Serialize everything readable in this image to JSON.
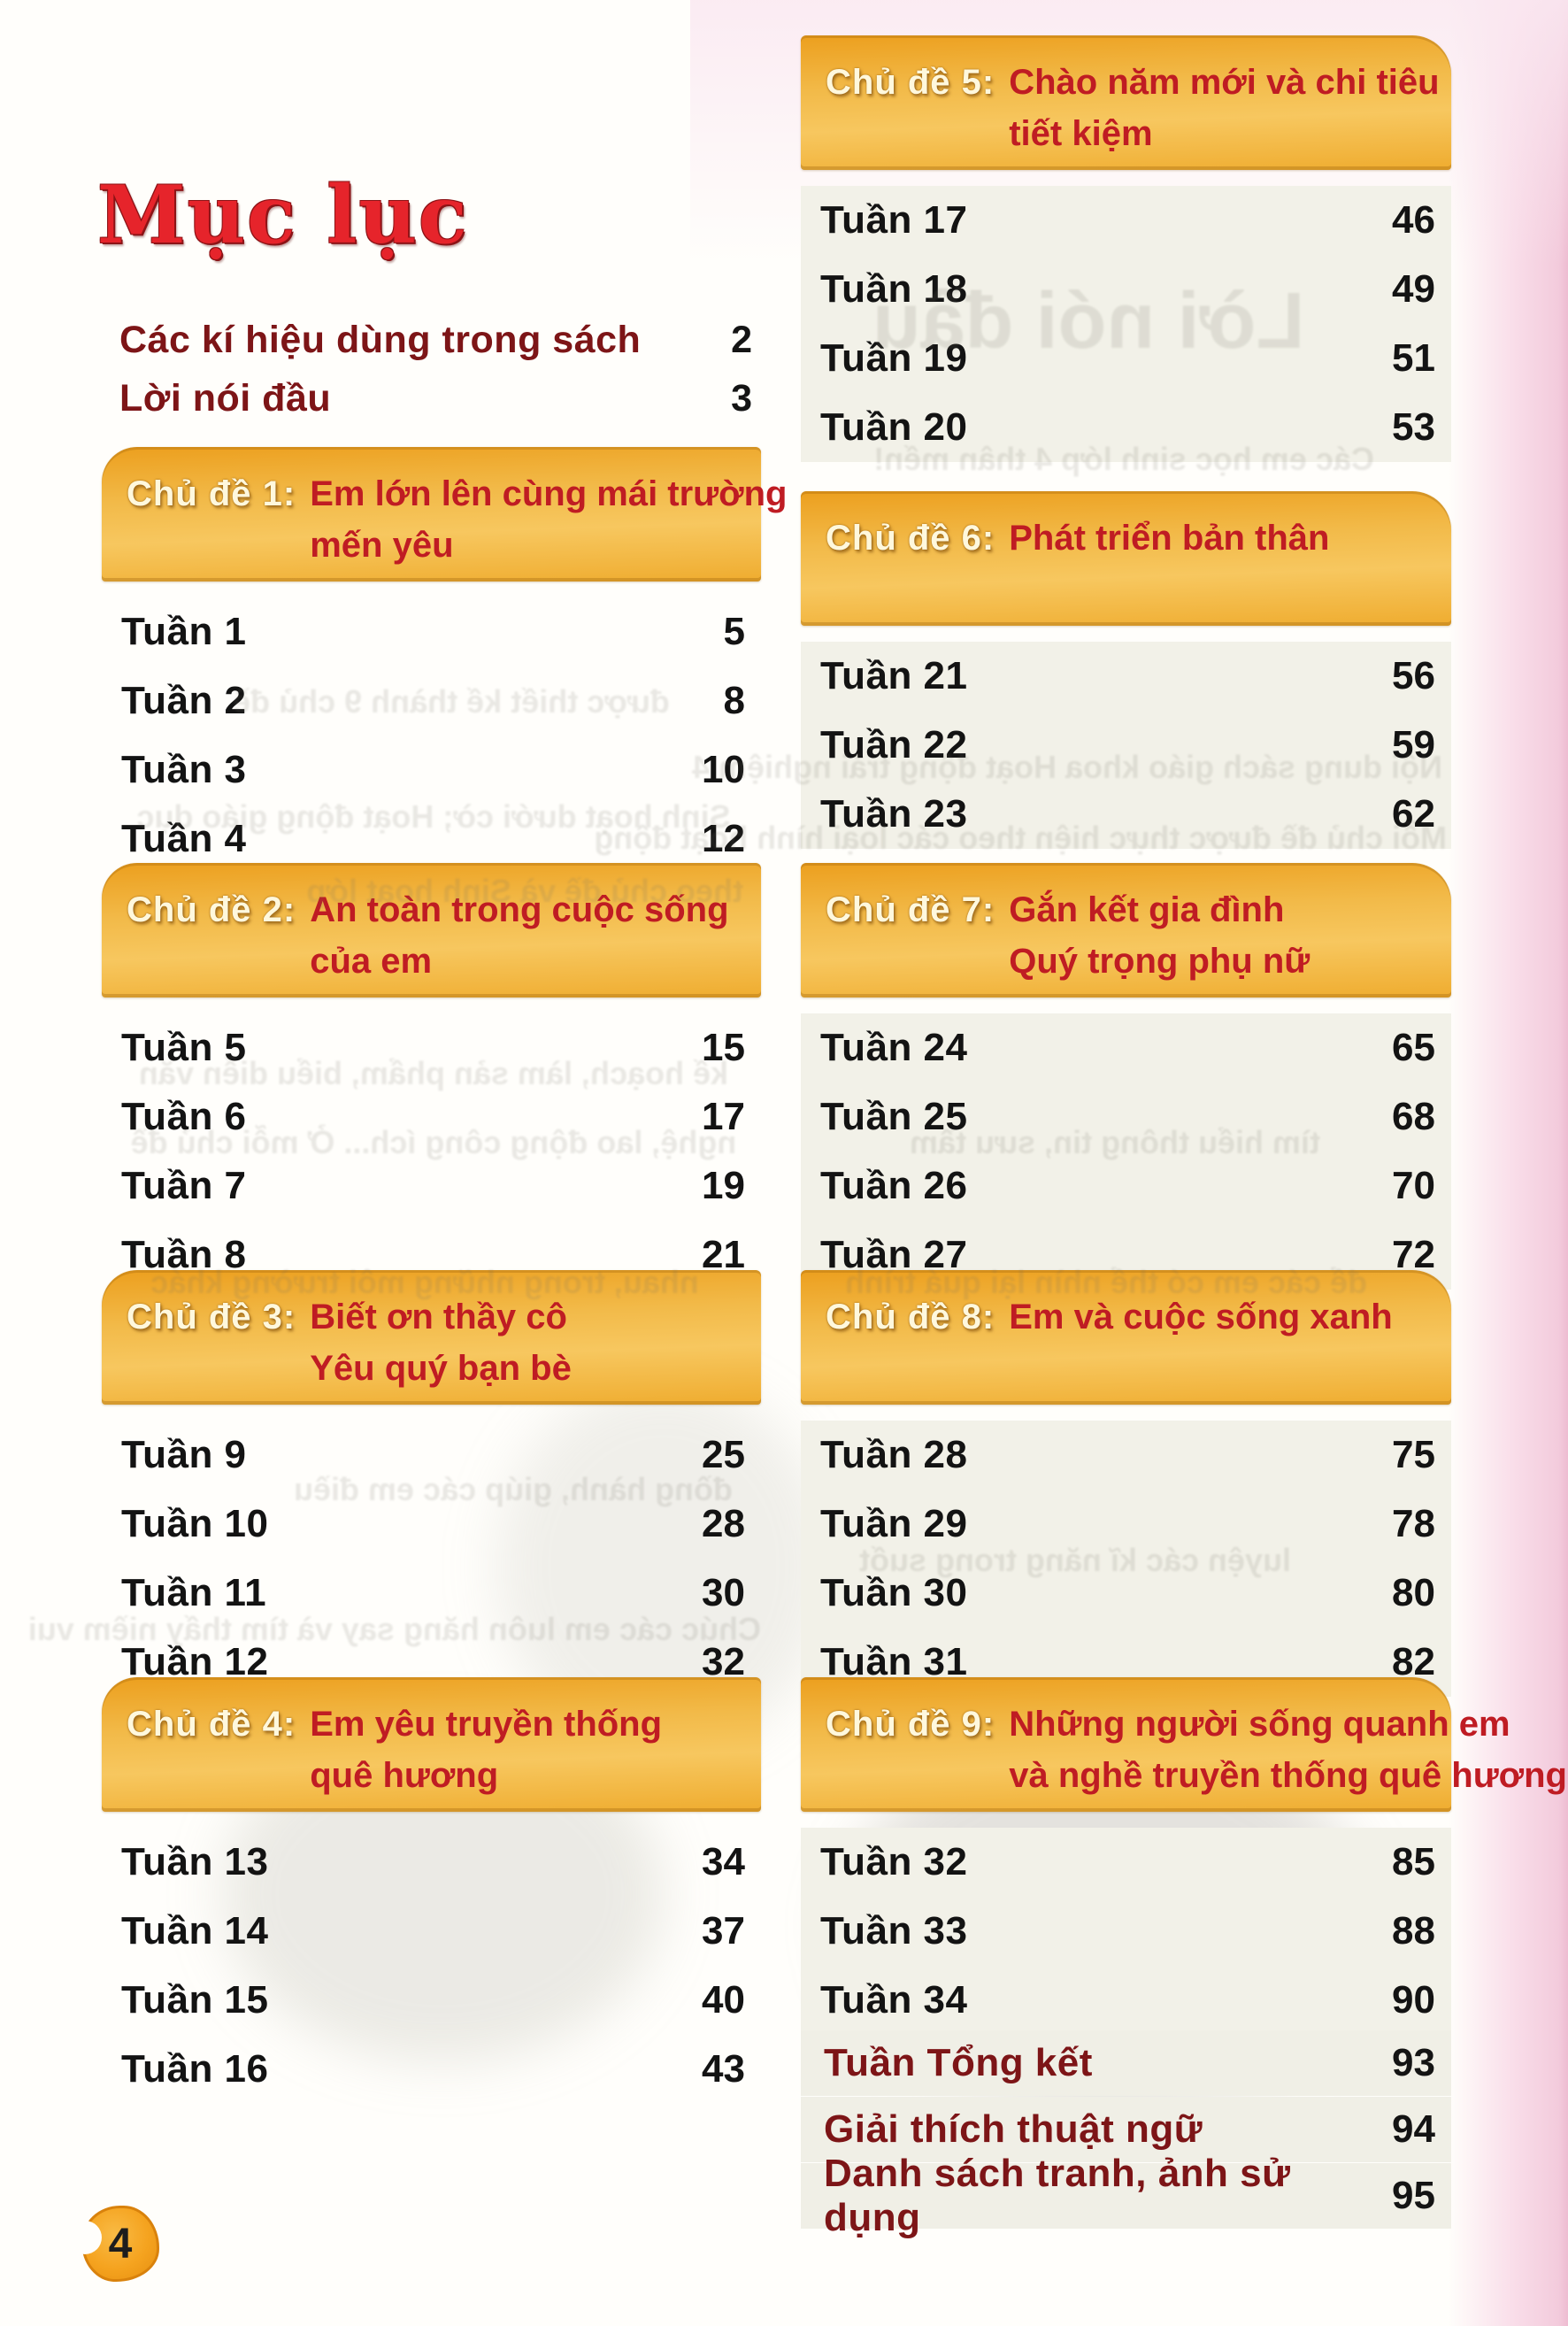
{
  "page": {
    "title": "Mục lục",
    "page_number": "4"
  },
  "front_matter": [
    {
      "label": "Các kí hiệu dùng trong sách",
      "page": "2"
    },
    {
      "label": "Lời nói đầu",
      "page": "3"
    }
  ],
  "sections": [
    {
      "label": "Chủ đề 1:",
      "title_lines": [
        "Em lớn lên cùng mái trường",
        "mến yêu"
      ],
      "rows": [
        {
          "label": "Tuần 1",
          "page": "5"
        },
        {
          "label": "Tuần 2",
          "page": "8"
        },
        {
          "label": "Tuần 3",
          "page": "10"
        },
        {
          "label": "Tuần 4",
          "page": "12"
        }
      ]
    },
    {
      "label": "Chủ đề 2:",
      "title_lines": [
        "An toàn trong cuộc sống",
        "của em"
      ],
      "rows": [
        {
          "label": "Tuần 5",
          "page": "15"
        },
        {
          "label": "Tuần 6",
          "page": "17"
        },
        {
          "label": "Tuần 7",
          "page": "19"
        },
        {
          "label": "Tuần 8",
          "page": "21"
        }
      ]
    },
    {
      "label": "Chủ đề 3:",
      "title_lines": [
        "Biết ơn thầy cô",
        "Yêu quý bạn bè"
      ],
      "rows": [
        {
          "label": "Tuần 9",
          "page": "25"
        },
        {
          "label": "Tuần 10",
          "page": "28"
        },
        {
          "label": "Tuần 11",
          "page": "30"
        },
        {
          "label": "Tuần 12",
          "page": "32"
        }
      ]
    },
    {
      "label": "Chủ đề 4:",
      "title_lines": [
        "Em yêu truyền thống",
        "quê hương"
      ],
      "rows": [
        {
          "label": "Tuần 13",
          "page": "34"
        },
        {
          "label": "Tuần 14",
          "page": "37"
        },
        {
          "label": "Tuần 15",
          "page": "40"
        },
        {
          "label": "Tuần 16",
          "page": "43"
        }
      ]
    },
    {
      "label": "Chủ đề 5:",
      "title_lines": [
        "Chào năm mới và chi tiêu",
        "tiết kiệm"
      ],
      "rows": [
        {
          "label": "Tuần 17",
          "page": "46"
        },
        {
          "label": "Tuần 18",
          "page": "49"
        },
        {
          "label": "Tuần 19",
          "page": "51"
        },
        {
          "label": "Tuần 20",
          "page": "53"
        }
      ]
    },
    {
      "label": "Chủ đề 6:",
      "title_lines": [
        "Phát triển bản thân"
      ],
      "rows": [
        {
          "label": "Tuần 21",
          "page": "56"
        },
        {
          "label": "Tuần 22",
          "page": "59"
        },
        {
          "label": "Tuần 23",
          "page": "62"
        }
      ]
    },
    {
      "label": "Chủ đề 7:",
      "title_lines": [
        "Gắn kết gia đình",
        "Quý trọng phụ nữ"
      ],
      "rows": [
        {
          "label": "Tuần 24",
          "page": "65"
        },
        {
          "label": "Tuần 25",
          "page": "68"
        },
        {
          "label": "Tuần 26",
          "page": "70"
        },
        {
          "label": "Tuần 27",
          "page": "72"
        }
      ]
    },
    {
      "label": "Chủ đề 8:",
      "title_lines": [
        "Em và cuộc sống xanh"
      ],
      "rows": [
        {
          "label": "Tuần 28",
          "page": "75"
        },
        {
          "label": "Tuần 29",
          "page": "78"
        },
        {
          "label": "Tuần 30",
          "page": "80"
        },
        {
          "label": "Tuần 31",
          "page": "82"
        }
      ]
    },
    {
      "label": "Chủ đề 9:",
      "title_lines": [
        "Những người sống quanh em",
        "và nghề truyền thống quê hương"
      ],
      "rows": [
        {
          "label": "Tuần 32",
          "page": "85"
        },
        {
          "label": "Tuần 33",
          "page": "88"
        },
        {
          "label": "Tuần 34",
          "page": "90"
        }
      ]
    }
  ],
  "footer_rows": [
    {
      "label": "Tuần Tổng kết",
      "page": "93"
    },
    {
      "label": "Giải thích thuật ngữ",
      "page": "94"
    },
    {
      "label": "Danh sách tranh, ảnh sử dụng",
      "page": "95"
    }
  ],
  "ghost_text": {
    "note": "faint mirrored bleed-through from the reverse page",
    "lines": [
      "Lời nói đầu",
      "Các em học sinh lớp 4 thân mến!",
      "Nội dung sách giáo khoa Hoạt động trải nghiệm 4",
      "Mỗi chủ đề được thực hiện theo các loại hình hoạt động",
      "theo chủ đề và Sinh hoạt lớp",
      "được thiết kế thành 9 chủ đề",
      "Sinh hoạt dưới cờ; Hoạt động giáo dục",
      "kế hoạch, làm sản phẩm, biểu diễn văn",
      "nghệ, lao động công ích... Ở mỗi chủ đề",
      "tìm hiểu thông tin, sưu tầm",
      "nhau, trong những môi trường khác",
      "để các em có thể nhìn lại quá trình",
      "đồng hành, giúp các em điều",
      "luyện các kĩ năng trong suốt",
      "Chúc các em luôn hăng say và tìm thấy niềm vui"
    ]
  },
  "colors": {
    "banner_orange": "#f2ba49",
    "banner_label_cream": "#fff8dd",
    "chapter_title_red": "#bf1c23",
    "heading_red": "#e6242b",
    "dark_maroon_text": "#7d1517",
    "row_text_black": "#131313",
    "page_edge_pink": "#f3cbdc",
    "page_badge_orange": "#f5a31f",
    "rows_shade_beige": "#f2f1e8"
  }
}
